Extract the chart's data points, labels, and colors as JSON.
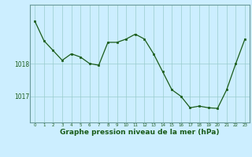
{
  "x": [
    0,
    1,
    2,
    3,
    4,
    5,
    6,
    7,
    8,
    9,
    10,
    11,
    12,
    13,
    14,
    15,
    16,
    17,
    18,
    19,
    20,
    21,
    22,
    23
  ],
  "y": [
    1019.3,
    1018.7,
    1018.4,
    1018.1,
    1018.3,
    1018.2,
    1018.0,
    1017.95,
    1018.65,
    1018.65,
    1018.75,
    1018.9,
    1018.75,
    1018.3,
    1017.75,
    1017.2,
    1017.0,
    1016.65,
    1016.7,
    1016.65,
    1016.63,
    1017.2,
    1018.0,
    1018.75
  ],
  "line_color": "#1a5c1a",
  "marker_color": "#1a5c1a",
  "bg_color": "#cceeff",
  "grid_color": "#99cccc",
  "xlabel": "Graphe pression niveau de la mer (hPa)",
  "xlabel_fontsize": 6.5,
  "xlabel_color": "#1a5c1a",
  "ytick_labels": [
    "1017",
    "1018"
  ],
  "ytick_values": [
    1017.0,
    1018.0
  ],
  "ylim": [
    1016.2,
    1019.8
  ],
  "xlim": [
    -0.5,
    23.5
  ],
  "axis_color": "#6a9a9a",
  "tick_color": "#1a5c1a"
}
